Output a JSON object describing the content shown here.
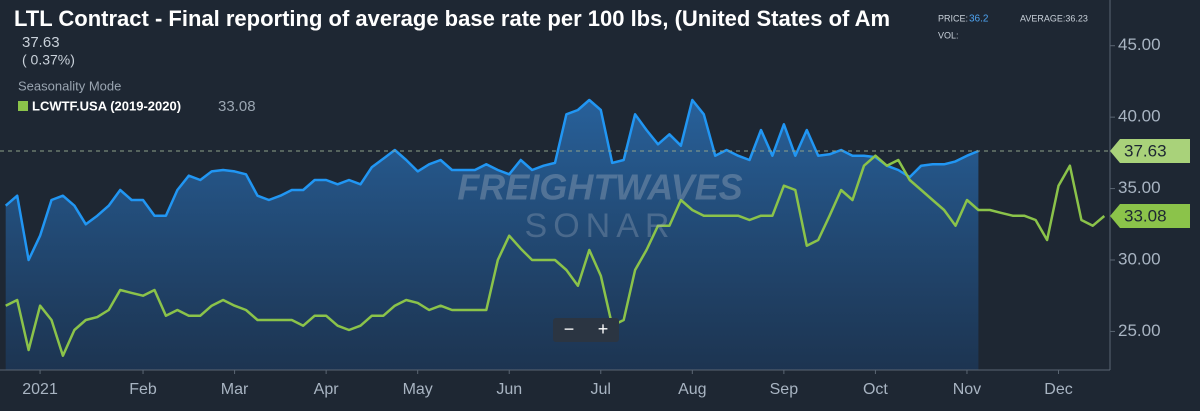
{
  "header": {
    "title": "LTL Contract - Final reporting of average base rate per 100 lbs, (United States of Am",
    "price": "37.63",
    "change": "( 0.37%)",
    "mode": "Seasonality Mode",
    "legend_name": "LCWTF.USA (2019-2020)",
    "legend_value": "33.08",
    "tooltip_price_label": "PRICE:",
    "tooltip_price": "36.2",
    "tooltip_average": "AVERAGE:36.23",
    "tooltip_vol": "VOL:",
    "watermark_top": "FREIGHTWAVES",
    "watermark_bottom": "SONAR",
    "zoom_out": "−",
    "zoom_in": "+"
  },
  "chart_data": {
    "type": "line",
    "categories": [
      null,
      null,
      null,
      "2021",
      null,
      null,
      null,
      null,
      null,
      null,
      null,
      null,
      "Feb",
      null,
      null,
      null,
      null,
      null,
      null,
      null,
      "Mar",
      null,
      null,
      null,
      null,
      null,
      null,
      null,
      "Apr",
      null,
      null,
      null,
      null,
      null,
      null,
      null,
      "May",
      null,
      null,
      null,
      null,
      null,
      null,
      null,
      "Jun",
      null,
      null,
      null,
      null,
      null,
      null,
      null,
      "Jul",
      null,
      null,
      null,
      null,
      null,
      null,
      null,
      "Aug",
      null,
      null,
      null,
      null,
      null,
      null,
      null,
      "Sep",
      null,
      null,
      null,
      null,
      null,
      null,
      null,
      "Oct",
      null,
      null,
      null,
      null,
      null,
      null,
      null,
      "Nov",
      null,
      null,
      null,
      null,
      null,
      null,
      null,
      "Dec",
      null,
      null,
      null,
      null
    ],
    "series": [
      {
        "color": "#2196f3",
        "area": true,
        "values": [
          33.8,
          34.5,
          30.0,
          31.7,
          34.2,
          34.5,
          33.8,
          32.5,
          33.1,
          33.8,
          34.9,
          34.2,
          34.2,
          33.1,
          33.1,
          34.9,
          35.9,
          35.6,
          36.2,
          36.3,
          36.2,
          36.0,
          34.5,
          34.2,
          34.5,
          34.9,
          34.9,
          35.6,
          35.6,
          35.3,
          35.6,
          35.3,
          36.5,
          37.1,
          37.7,
          37.0,
          36.2,
          36.7,
          37.0,
          36.3,
          36.3,
          36.3,
          36.7,
          36.3,
          36.0,
          37.0,
          36.3,
          36.6,
          36.8,
          40.2,
          40.5,
          41.2,
          40.5,
          36.8,
          37.0,
          40.2,
          39.1,
          38.1,
          38.8,
          38.0,
          41.2,
          40.2,
          37.3,
          37.7,
          37.3,
          37.0,
          39.1,
          37.3,
          39.5,
          37.3,
          39.1,
          37.3,
          37.4,
          37.7,
          37.3,
          37.3,
          37.2,
          36.6,
          36.3,
          35.8,
          36.6,
          36.7,
          36.7,
          36.9,
          37.3,
          37.63,
          null,
          null,
          null,
          null,
          null,
          null,
          null,
          null,
          null,
          null,
          null
        ]
      },
      {
        "name": "LCWTF.USA (2019-2020)",
        "color": "#8bc34a",
        "values": [
          26.8,
          27.2,
          23.7,
          26.8,
          25.8,
          23.3,
          25.1,
          25.8,
          26.0,
          26.5,
          27.9,
          27.7,
          27.5,
          27.9,
          26.1,
          26.5,
          26.1,
          26.1,
          26.8,
          27.2,
          26.8,
          26.5,
          25.8,
          25.8,
          25.8,
          25.8,
          25.4,
          26.1,
          26.1,
          25.4,
          25.1,
          25.4,
          26.1,
          26.1,
          26.8,
          27.2,
          27.0,
          26.5,
          26.8,
          26.5,
          26.5,
          26.5,
          26.5,
          30.0,
          31.7,
          30.8,
          30.0,
          30.0,
          30.0,
          29.3,
          28.2,
          30.7,
          28.9,
          25.4,
          25.8,
          29.3,
          30.7,
          32.4,
          32.4,
          34.2,
          33.5,
          33.1,
          33.1,
          33.1,
          33.1,
          32.8,
          33.1,
          33.1,
          35.2,
          34.9,
          31.0,
          31.4,
          33.1,
          34.9,
          34.2,
          36.6,
          37.3,
          36.6,
          37.0,
          35.6,
          34.9,
          34.2,
          33.5,
          32.4,
          34.2,
          33.5,
          33.5,
          33.3,
          33.1,
          33.1,
          32.8,
          31.4,
          35.2,
          36.6,
          32.8,
          32.4,
          33.08
        ]
      }
    ],
    "ylim": [
      22.3,
      48.2
    ],
    "yticks": [
      {
        "value": 25,
        "label": "25.00"
      },
      {
        "value": 30,
        "label": "30.00"
      },
      {
        "value": 35,
        "label": "35.00"
      },
      {
        "value": 40,
        "label": "40.00"
      },
      {
        "value": 45,
        "label": "45.00"
      }
    ],
    "price_line": 37.63
  }
}
